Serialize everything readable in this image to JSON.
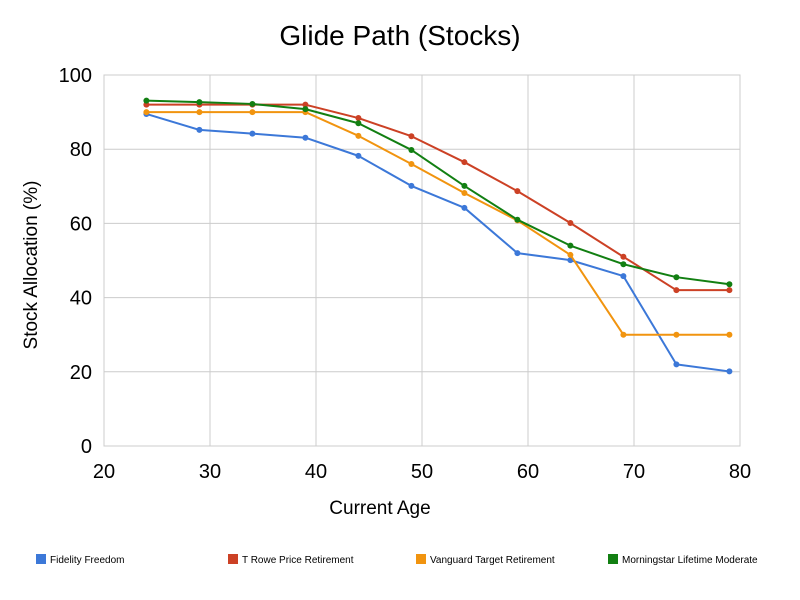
{
  "chart_data": {
    "type": "line",
    "title": "Glide Path (Stocks)",
    "xlabel": "Current Age",
    "ylabel": "Stock Allocation (%)",
    "xlim": [
      20,
      80
    ],
    "ylim": [
      0,
      100
    ],
    "xticks": [
      20,
      30,
      40,
      50,
      60,
      70,
      80
    ],
    "yticks": [
      0,
      20,
      40,
      60,
      80,
      100
    ],
    "grid": true,
    "legend_position": "bottom",
    "x": [
      24,
      29,
      34,
      39,
      44,
      49,
      54,
      59,
      64,
      69,
      74,
      79
    ],
    "series": [
      {
        "name": "Fidelity Freedom",
        "color": "#3c78d8",
        "values": [
          89.5,
          85.2,
          84.2,
          83.1,
          78.2,
          70.1,
          64.2,
          52.0,
          50.1,
          45.8,
          22.0,
          20.1
        ]
      },
      {
        "name": "T Rowe Price Retirement",
        "color": "#cc4125",
        "values": [
          92.0,
          92.0,
          92.0,
          92.0,
          88.4,
          83.5,
          76.5,
          68.7,
          60.1,
          51.0,
          42.0,
          42.0
        ]
      },
      {
        "name": "Vanguard Target Retirement",
        "color": "#f1940f",
        "values": [
          90.0,
          90.0,
          90.0,
          90.0,
          83.6,
          76.0,
          68.2,
          60.8,
          51.5,
          30.0,
          30.0,
          30.0
        ]
      },
      {
        "name": "Morningstar Lifetime Moderate",
        "color": "#127f12",
        "values": [
          93.1,
          92.7,
          92.2,
          90.8,
          87.0,
          79.8,
          70.1,
          61.0,
          54.0,
          49.0,
          45.5,
          43.6
        ]
      }
    ]
  }
}
